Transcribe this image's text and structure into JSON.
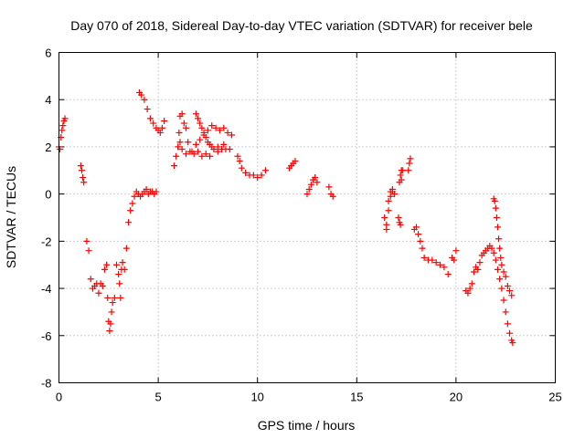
{
  "chart_data": {
    "type": "scatter",
    "title": "Day 070 of 2018, Sidereal Day-to-day VTEC variation (SDTVAR) for receiver bele",
    "xlabel": "GPS time / hours",
    "ylabel": "SDTVAR / TECUs",
    "xlim": [
      0,
      25
    ],
    "ylim": [
      -8,
      6
    ],
    "xticks": [
      "0",
      "5",
      "10",
      "15",
      "20",
      "25"
    ],
    "yticks": [
      "-8",
      "-6",
      "-4",
      "-2",
      "0",
      "2",
      "4",
      "6"
    ],
    "grid": true,
    "marker": "plus",
    "series": [
      {
        "name": "bele",
        "color": "#ff0000",
        "x": [
          0.0,
          0.05,
          0.1,
          0.15,
          0.2,
          0.25,
          0.3,
          1.1,
          1.15,
          1.2,
          1.25,
          1.4,
          1.5,
          1.6,
          1.7,
          1.8,
          1.9,
          2.0,
          2.1,
          2.2,
          2.3,
          2.4,
          2.45,
          2.5,
          2.55,
          2.6,
          2.65,
          2.7,
          2.8,
          2.9,
          3.0,
          3.05,
          3.1,
          3.15,
          3.2,
          3.3,
          3.4,
          3.5,
          3.6,
          3.7,
          3.8,
          3.9,
          4.0,
          4.1,
          4.2,
          4.3,
          4.4,
          4.5,
          4.6,
          4.7,
          4.8,
          4.9,
          4.05,
          4.15,
          4.3,
          4.45,
          4.6,
          4.75,
          4.9,
          5.0,
          5.1,
          5.2,
          5.3,
          5.8,
          5.9,
          6.0,
          6.05,
          6.1,
          6.2,
          6.3,
          6.4,
          6.5,
          6.7,
          6.9,
          7.1,
          7.3,
          7.5,
          7.7,
          7.9,
          8.1,
          8.3,
          8.5,
          8.7,
          6.0,
          6.1,
          6.2,
          6.4,
          6.6,
          6.8,
          7.0,
          7.2,
          7.4,
          7.6,
          7.8,
          8.0,
          8.2,
          8.4,
          6.9,
          7.0,
          7.1,
          7.2,
          7.3,
          7.4,
          7.5,
          7.6,
          7.7,
          8.0,
          8.3,
          8.6,
          9.0,
          9.1,
          9.2,
          9.4,
          9.6,
          9.8,
          10.0,
          10.2,
          10.4,
          11.6,
          11.7,
          11.8,
          11.9,
          12.5,
          12.6,
          12.7,
          12.8,
          12.9,
          13.0,
          13.6,
          13.7,
          13.8,
          16.4,
          16.5,
          16.6,
          16.7,
          16.8,
          16.9,
          16.5,
          16.6,
          16.7,
          16.8,
          17.1,
          17.15,
          17.2,
          17.25,
          17.3,
          17.15,
          17.2,
          17.25,
          17.6,
          17.65,
          17.7,
          17.9,
          18.0,
          18.1,
          18.2,
          18.3,
          18.4,
          18.6,
          18.8,
          19.0,
          19.2,
          19.4,
          19.6,
          19.8,
          19.9,
          20.0,
          20.5,
          20.6,
          20.7,
          20.8,
          20.9,
          21.0,
          21.1,
          21.2,
          21.3,
          21.4,
          21.5,
          21.6,
          21.7,
          21.8,
          21.9,
          21.95,
          22.0,
          22.05,
          22.1,
          22.15,
          22.2,
          22.25,
          22.3,
          22.4,
          22.5,
          22.6,
          22.7,
          22.8,
          21.9,
          22.0,
          22.1,
          22.2,
          22.3,
          22.4,
          22.5,
          22.6,
          22.7,
          22.8,
          22.85
        ],
        "y": [
          2.0,
          1.9,
          2.4,
          2.7,
          2.9,
          3.1,
          3.2,
          1.2,
          1.0,
          0.7,
          0.5,
          -2.0,
          -2.4,
          -3.6,
          -4.0,
          -3.9,
          -3.8,
          -4.2,
          -3.8,
          -3.9,
          -3.2,
          -3.0,
          -4.4,
          -5.4,
          -5.8,
          -5.5,
          -5.0,
          -4.6,
          -4.4,
          -3.0,
          -3.4,
          -3.8,
          -4.4,
          -3.2,
          -2.9,
          -3.2,
          -2.3,
          -1.2,
          -0.7,
          -0.4,
          -0.1,
          0.1,
          0.0,
          -0.1,
          0.0,
          0.1,
          0.2,
          0.0,
          0.1,
          0.1,
          0.0,
          0.1,
          4.3,
          4.2,
          4.0,
          3.6,
          3.2,
          3.0,
          2.8,
          2.7,
          2.6,
          2.8,
          3.1,
          1.2,
          1.6,
          2.0,
          2.6,
          3.3,
          3.4,
          3.0,
          2.8,
          2.2,
          1.8,
          2.1,
          2.3,
          2.5,
          2.7,
          2.9,
          2.8,
          2.7,
          2.8,
          2.6,
          2.5,
          2.0,
          2.2,
          1.9,
          1.7,
          1.8,
          1.7,
          1.8,
          1.6,
          1.7,
          1.6,
          1.9,
          1.8,
          1.9,
          1.9,
          3.4,
          3.2,
          3.0,
          2.8,
          2.6,
          2.4,
          2.2,
          2.1,
          2.0,
          2.0,
          2.1,
          1.9,
          1.6,
          1.4,
          1.1,
          0.9,
          0.8,
          0.8,
          0.7,
          0.8,
          1.0,
          1.1,
          1.2,
          1.3,
          1.4,
          0.0,
          0.2,
          0.4,
          0.6,
          0.7,
          0.5,
          0.3,
          0.0,
          -0.1,
          -1.0,
          -1.3,
          -0.7,
          -0.1,
          0.1,
          0.0,
          -1.5,
          -0.3,
          0.1,
          0.2,
          -1.0,
          -1.2,
          -1.3,
          0.6,
          1.0,
          0.5,
          0.8,
          1.0,
          1.0,
          1.3,
          1.5,
          -1.5,
          -1.4,
          -1.7,
          -2.0,
          -2.3,
          -2.7,
          -2.8,
          -2.8,
          -2.9,
          -3.0,
          -3.1,
          -3.4,
          -2.7,
          -2.8,
          -2.4,
          -4.1,
          -4.2,
          -4.0,
          -3.8,
          -3.3,
          -3.1,
          -3.2,
          -2.9,
          -2.6,
          -2.5,
          -2.4,
          -2.3,
          -2.2,
          -2.3,
          -0.2,
          -0.3,
          -0.6,
          -1.0,
          -1.4,
          -1.9,
          -2.3,
          -2.7,
          -3.0,
          -3.3,
          -3.5,
          -3.9,
          -4.1,
          -4.3,
          -2.5,
          -2.8,
          -3.2,
          -3.6,
          -4.0,
          -4.5,
          -5.0,
          -5.5,
          -5.9,
          -6.2,
          -6.3
        ]
      }
    ]
  }
}
